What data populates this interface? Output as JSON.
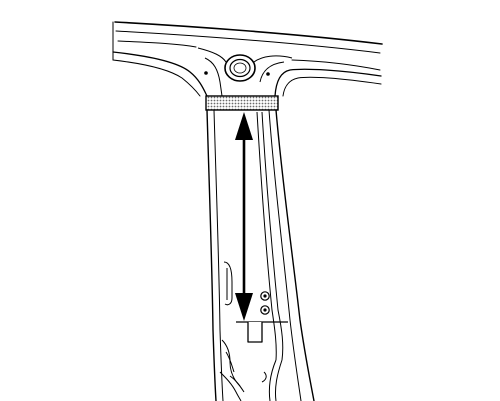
{
  "diagram": {
    "subject": "",
    "colors": {
      "line": "#000000",
      "background": "#ffffff",
      "tape_fill": "#9a9a9a"
    },
    "components": [
      "roof-rail-panel",
      "center-pillar-panel",
      "trim-opening-ring",
      "pillar-molding-strip",
      "reference-tape-band",
      "measurement-arrow",
      "fastener-pair",
      "lower-trim-clip",
      "weatherstrip-channel"
    ]
  }
}
